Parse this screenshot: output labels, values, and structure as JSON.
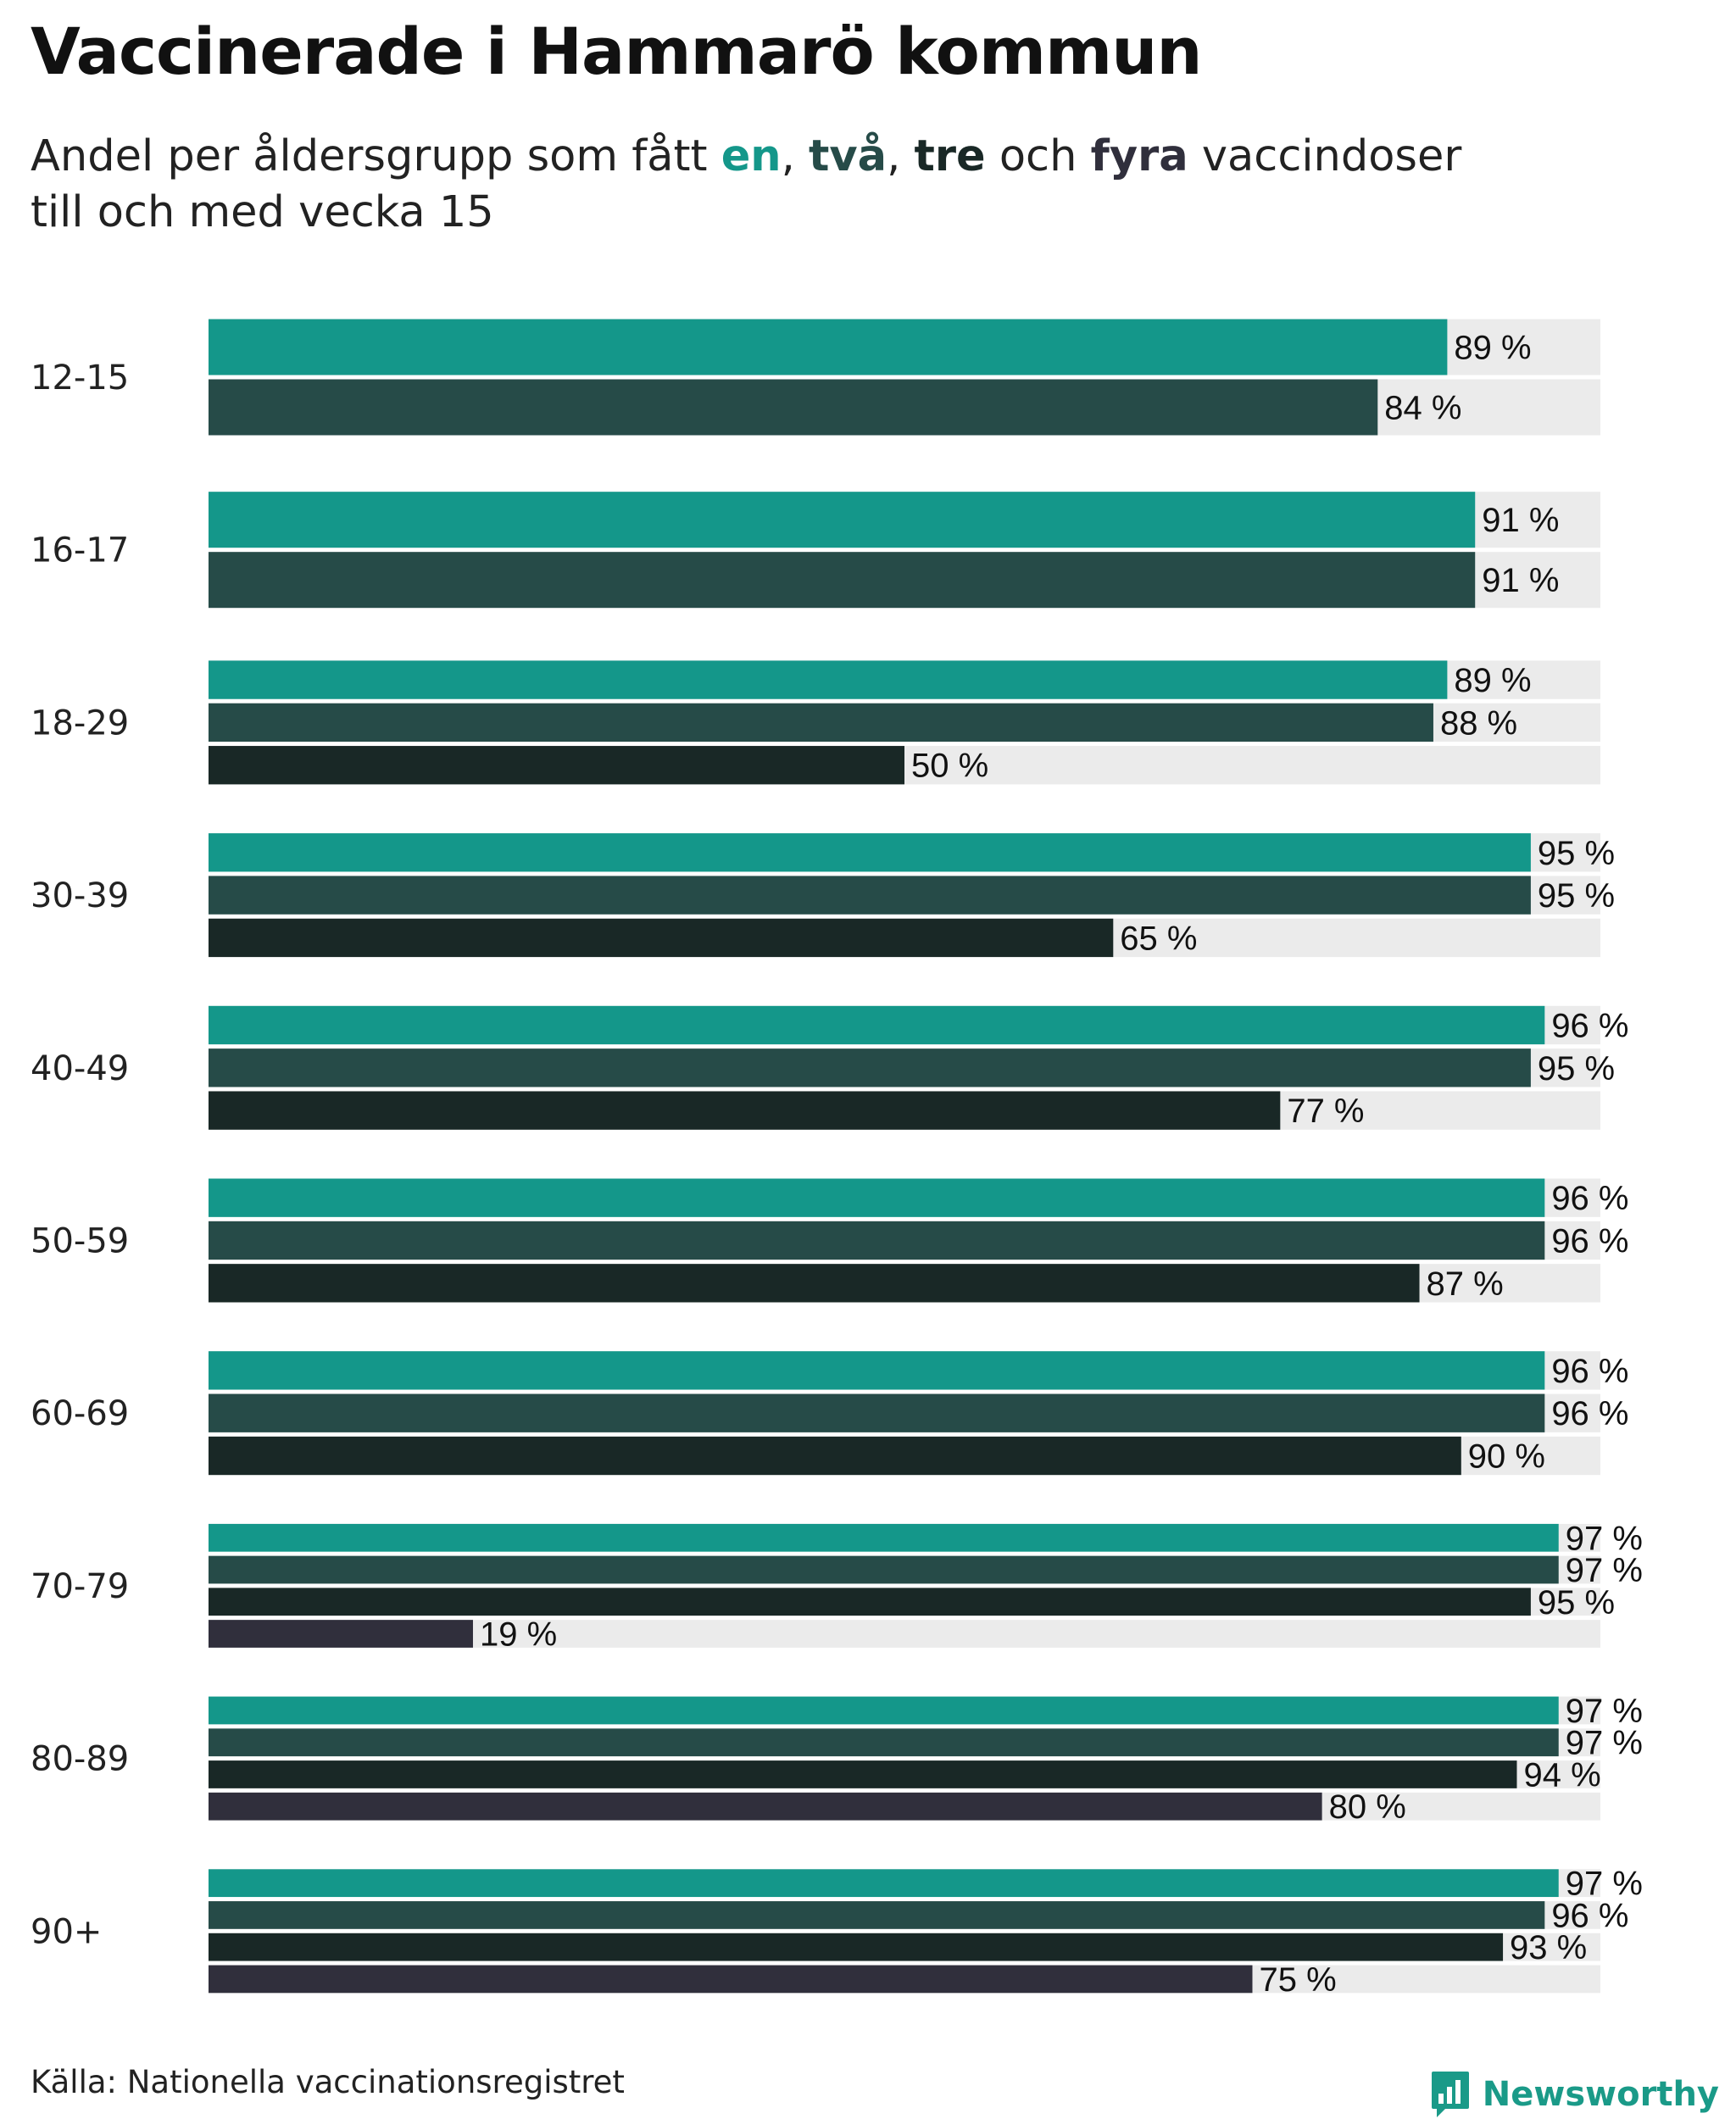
{
  "title": "Vaccinerade i Hammarö kommun",
  "subtitle": {
    "prefix": "Andel per åldersgrupp som fått ",
    "dose1": "en",
    "sep1": ", ",
    "dose2": "två",
    "sep2": ", ",
    "dose3": "tre",
    "conj": " och ",
    "dose4": "fyra",
    "suffix": " vaccindoser",
    "line2": "till och med vecka 15"
  },
  "colors": {
    "dose1": "#14978a",
    "dose2": "#264b48",
    "dose3": "#192826",
    "dose4": "#302f3c",
    "track": "#ebebeb"
  },
  "value_suffix": " %",
  "chart_data": {
    "type": "bar",
    "orientation": "horizontal",
    "xlim": [
      0,
      100
    ],
    "grid": false,
    "categories": [
      "12-15",
      "16-17",
      "18-29",
      "30-39",
      "40-49",
      "50-59",
      "60-69",
      "70-79",
      "80-89",
      "90+"
    ],
    "series": [
      {
        "name": "en",
        "values": [
          89,
          91,
          89,
          95,
          96,
          96,
          96,
          97,
          97,
          97
        ]
      },
      {
        "name": "två",
        "values": [
          84,
          91,
          88,
          95,
          95,
          96,
          96,
          97,
          97,
          96
        ]
      },
      {
        "name": "tre",
        "values": [
          null,
          null,
          50,
          65,
          77,
          87,
          90,
          95,
          94,
          93
        ]
      },
      {
        "name": "fyra",
        "values": [
          null,
          null,
          null,
          null,
          null,
          null,
          null,
          19,
          80,
          75
        ]
      }
    ]
  },
  "source": "Källa: Nationella vaccinationsregistret",
  "brand": {
    "name": "Newsworthy",
    "icon": "bar-chart-logo-icon"
  }
}
